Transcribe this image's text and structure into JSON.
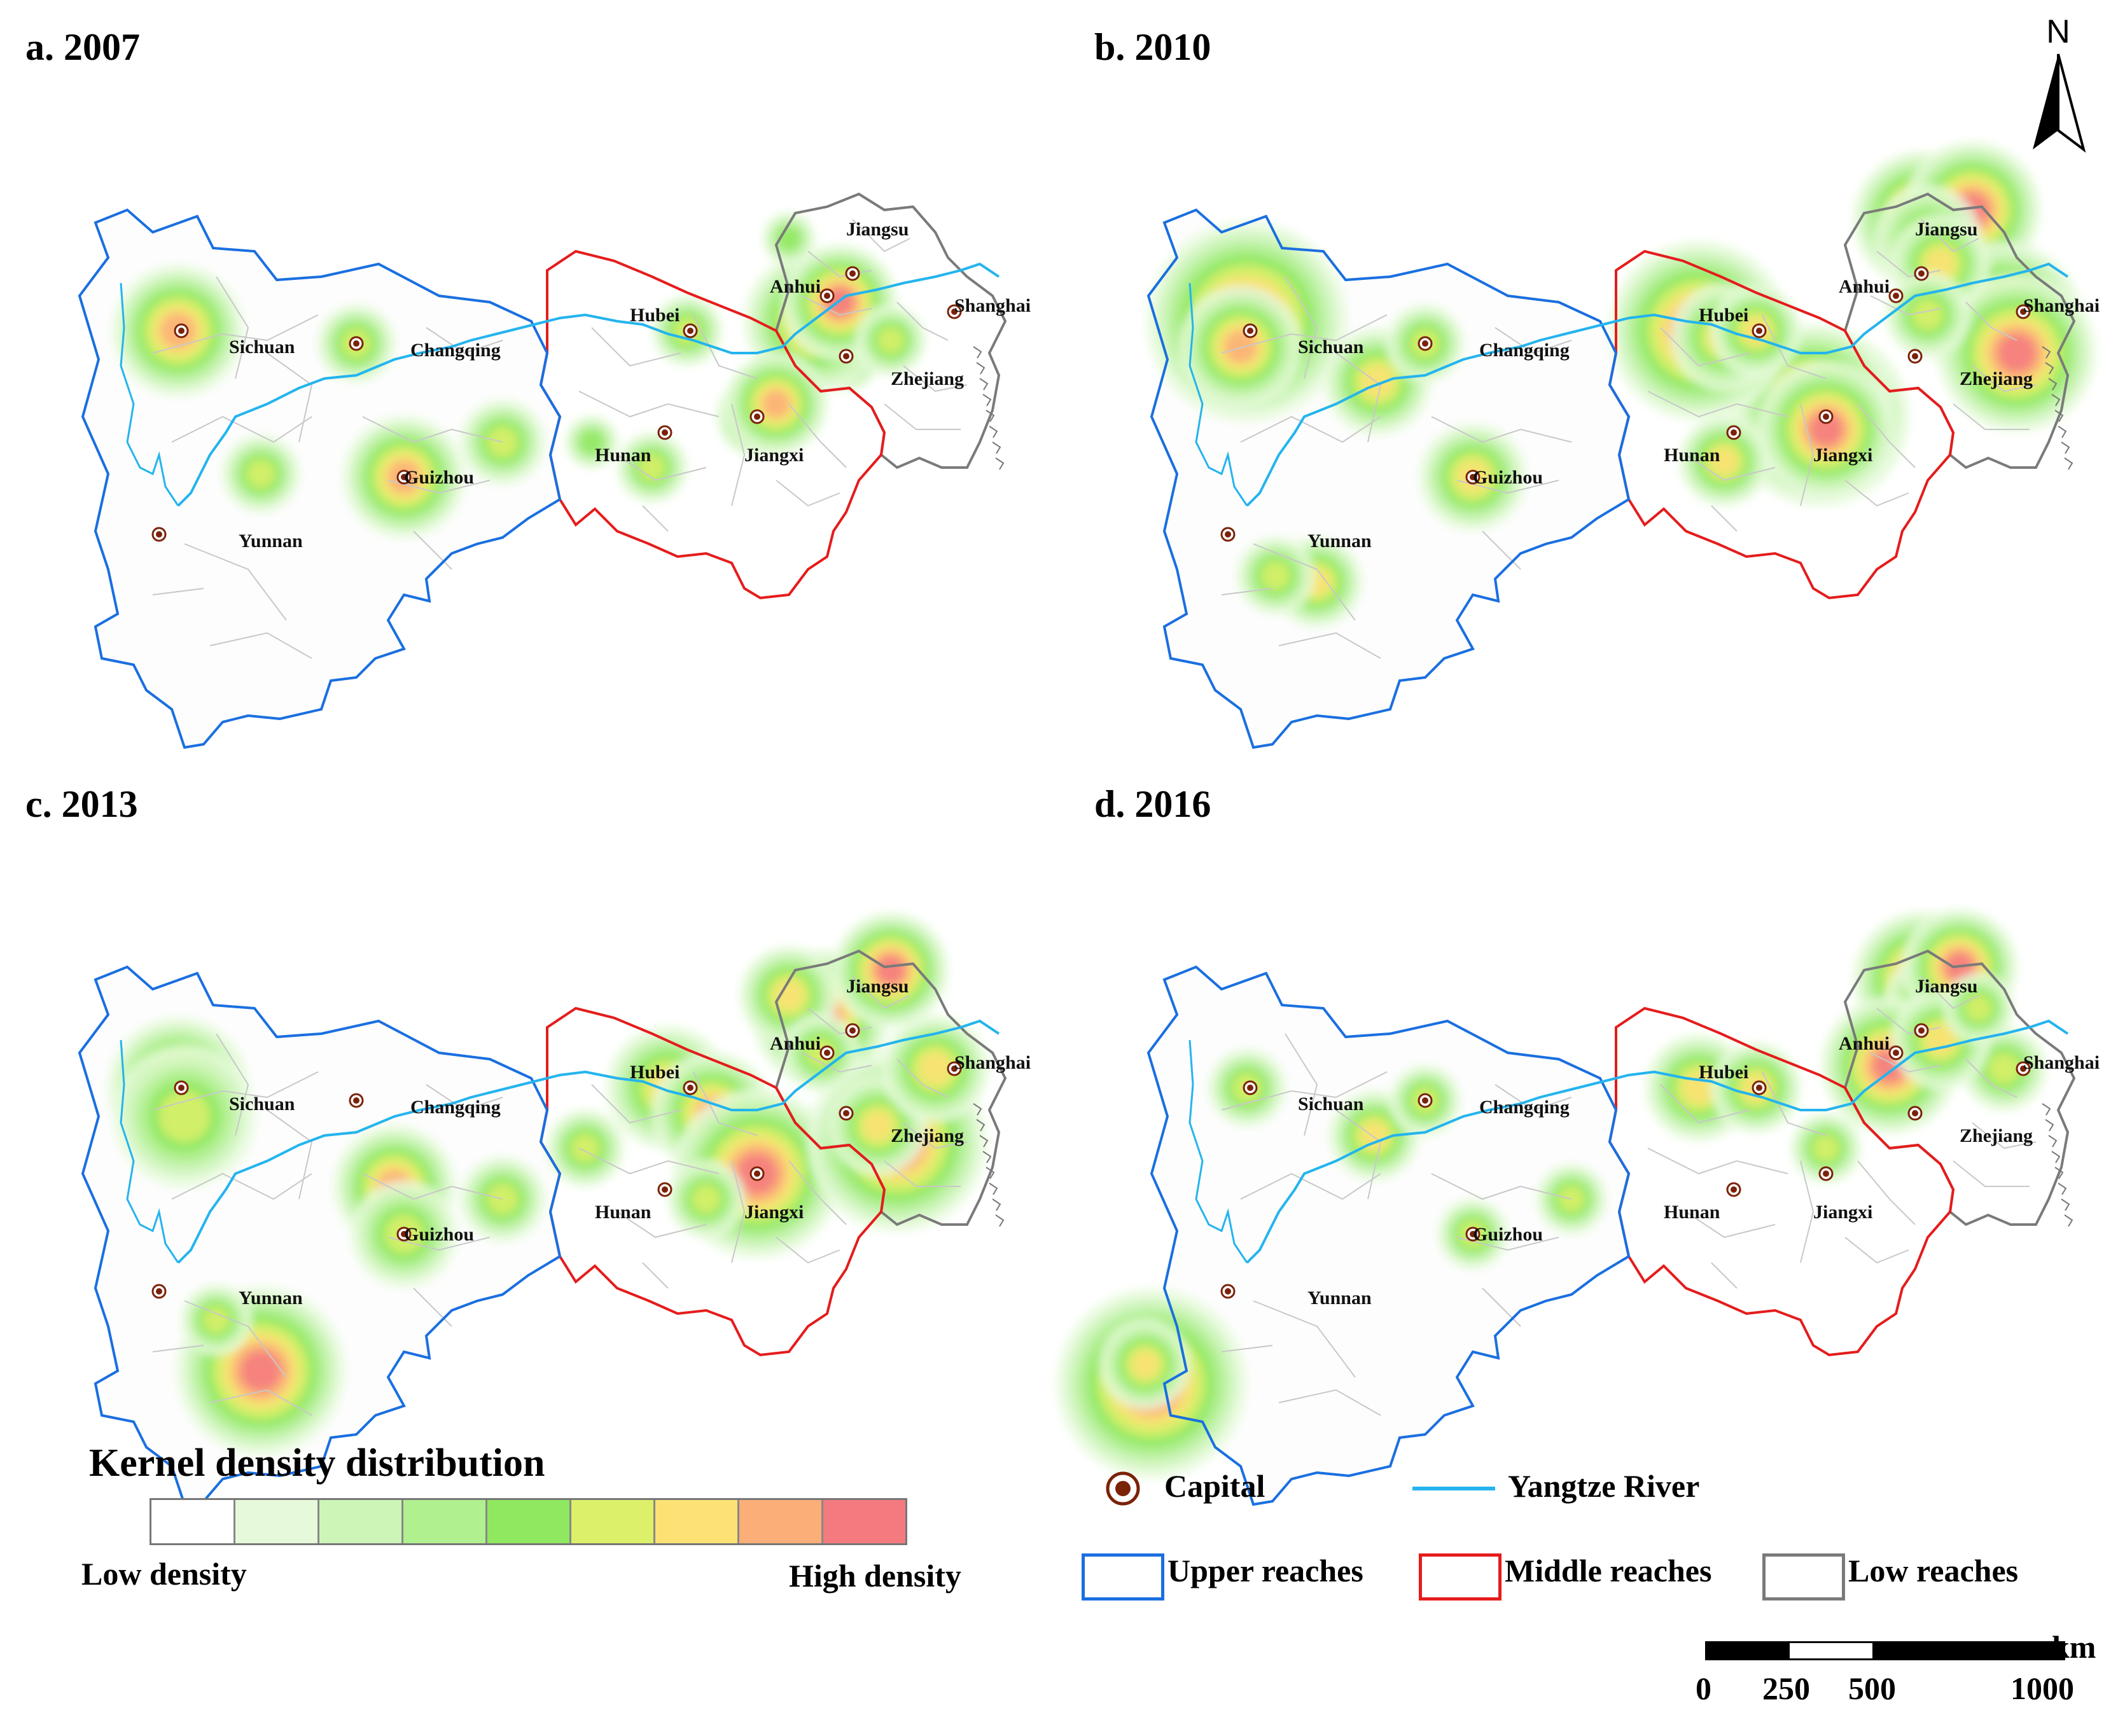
{
  "panels": [
    {
      "title": "a. 2007"
    },
    {
      "title": "b. 2010"
    },
    {
      "title": "c. 2013"
    },
    {
      "title": "d. 2016"
    }
  ],
  "provinces": {
    "sichuan": "Sichuan",
    "chongqing": "Changqing",
    "guizhou": "Guizhou",
    "yunnan": "Yunnan",
    "hubei": "Hubei",
    "hunan": "Hunan",
    "jiangxi": "Jiangxi",
    "anhui": "Anhui",
    "jiangsu": "Jiangsu",
    "shanghai": "Shanghai",
    "zhejiang": "Zhejiang"
  },
  "north_arrow": {
    "letter": "N"
  },
  "legend": {
    "kernel_title": "Kernel density distribution",
    "low": "Low density",
    "high": "High density",
    "ramp_colors": [
      "#ffffff",
      "#e6fadb",
      "#cdf5b8",
      "#b0f08e",
      "#8fe860",
      "#dcf06a",
      "#fde174",
      "#fbae78",
      "#f47a7f"
    ],
    "capital": "Capital",
    "river": "Yangtze River",
    "upper": "Upper reaches",
    "middle": "Middle reaches",
    "lower": "Low reaches",
    "colors": {
      "upper": "#1a6fe0",
      "middle": "#e51c1c",
      "lower": "#7a7a7a",
      "river": "#24b4ee",
      "capital": "#7a2208"
    }
  },
  "scale_bar": {
    "unit": "km",
    "ticks": [
      "0",
      "250",
      "500",
      "1000"
    ]
  }
}
